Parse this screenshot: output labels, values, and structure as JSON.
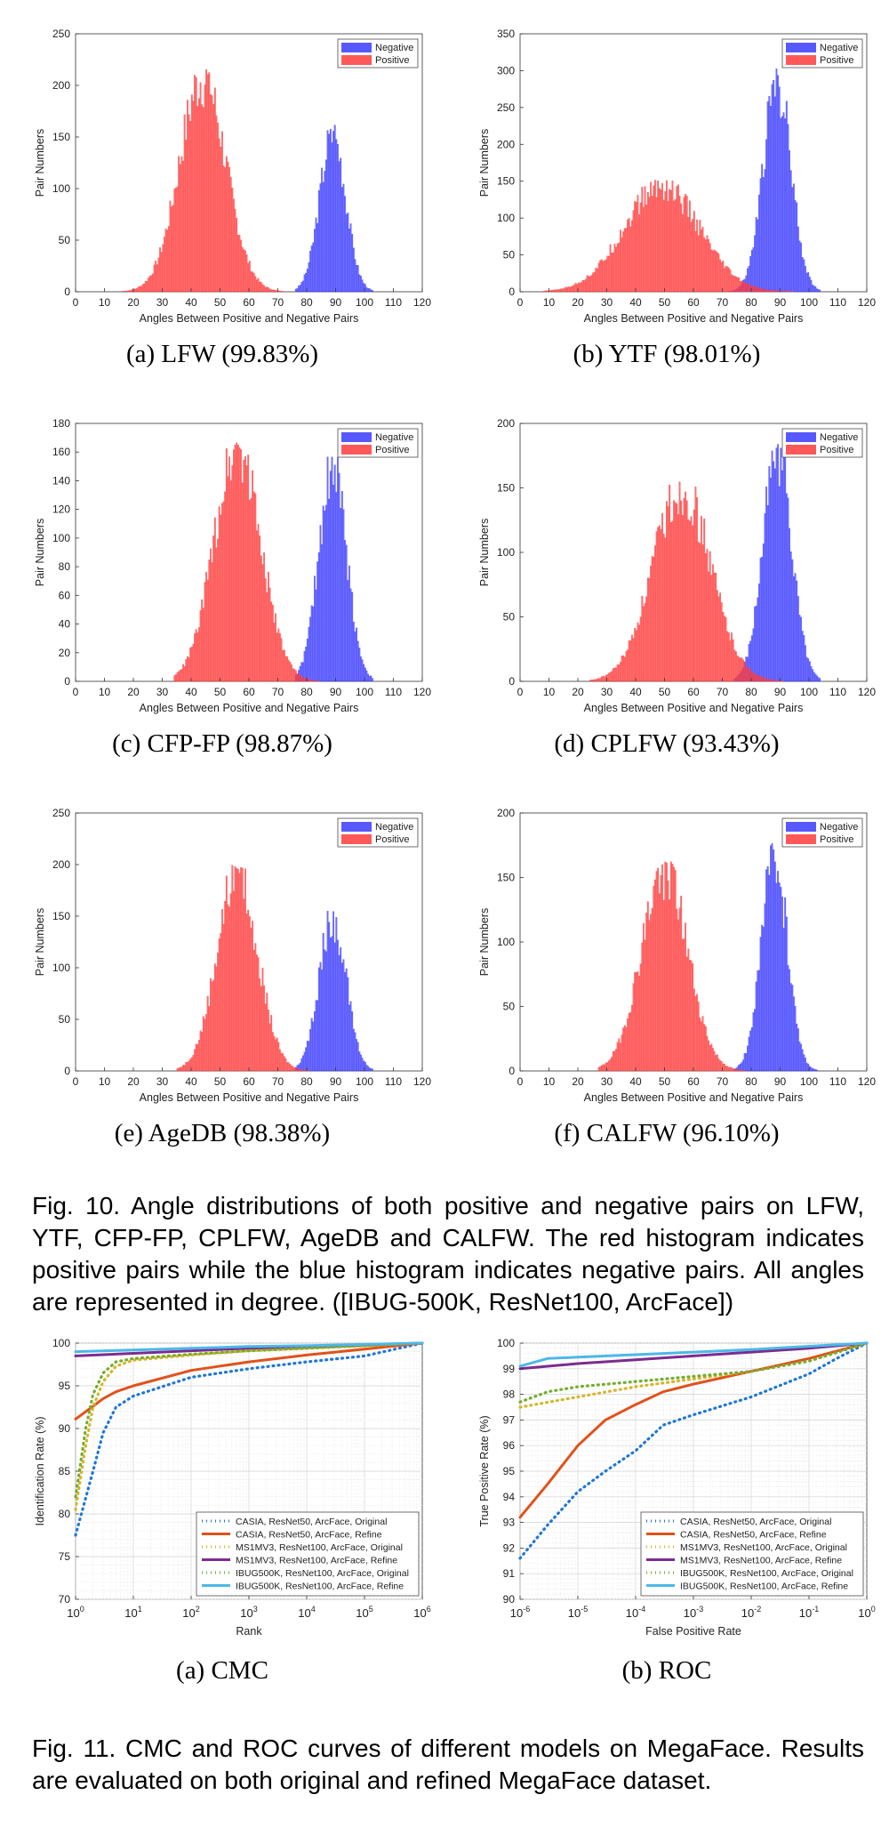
{
  "figure10": {
    "caption": "Fig. 10. Angle distributions of both positive and negative pairs on LFW, YTF, CFP-FP, CPLFW, AgeDB and CALFW. The red histogram indicates positive pairs while the blue histogram indicates negative pairs. All angles are represented in degree. ([IBUG-500K, ResNet100, ArcFace])"
  },
  "figure11": {
    "caption": "Fig. 11. CMC and ROC curves of different models on MegaFace. Results are evaluated on both original and refined MegaFace dataset."
  },
  "colors": {
    "negative": "#3b3bff",
    "positive": "#ff3b3b"
  },
  "chart_data": [
    {
      "id": "lfw",
      "type": "bar",
      "caption": "(a) LFW (99.83%)",
      "xlabel": "Angles Between Positive and Negative Pairs",
      "ylabel": "Pair Numbers",
      "xlim": [
        0,
        120
      ],
      "ylim": [
        0,
        250
      ],
      "xticks": [
        0,
        10,
        20,
        30,
        40,
        50,
        60,
        70,
        80,
        90,
        100,
        110,
        120
      ],
      "yticks": [
        0,
        50,
        100,
        150,
        200,
        250
      ],
      "legend": [
        "Negative",
        "Positive"
      ],
      "legend_position": "top-right",
      "series": [
        {
          "name": "Positive",
          "color": "#ff3b3b",
          "mean": 44,
          "sd": 8,
          "peak": 220,
          "range": [
            16,
            82
          ]
        },
        {
          "name": "Negative",
          "color": "#3b3bff",
          "mean": 89,
          "sd": 4.5,
          "peak": 163,
          "range": [
            76,
            103
          ]
        }
      ]
    },
    {
      "id": "ytf",
      "type": "bar",
      "caption": "(b) YTF (98.01%)",
      "xlabel": "Angles Between Positive and Negative Pairs",
      "ylabel": "Pair Numbers",
      "xlim": [
        0,
        120
      ],
      "ylim": [
        0,
        350
      ],
      "xticks": [
        0,
        10,
        20,
        30,
        40,
        50,
        60,
        70,
        80,
        90,
        100,
        110,
        120
      ],
      "yticks": [
        0,
        50,
        100,
        150,
        200,
        250,
        300,
        350
      ],
      "legend": [
        "Negative",
        "Positive"
      ],
      "legend_position": "top-right",
      "series": [
        {
          "name": "Positive",
          "color": "#ff3b3b",
          "mean": 49,
          "sd": 13,
          "peak": 152,
          "range": [
            8,
            98
          ]
        },
        {
          "name": "Negative",
          "color": "#3b3bff",
          "mean": 89,
          "sd": 4.8,
          "peak": 303,
          "range": [
            72,
            104
          ]
        }
      ]
    },
    {
      "id": "cfpfp",
      "type": "bar",
      "caption": "(c) CFP-FP (98.87%)",
      "xlabel": "Angles Between Positive and Negative Pairs",
      "ylabel": "Pair Numbers",
      "xlim": [
        0,
        120
      ],
      "ylim": [
        0,
        180
      ],
      "xticks": [
        0,
        10,
        20,
        30,
        40,
        50,
        60,
        70,
        80,
        90,
        100,
        110,
        120
      ],
      "yticks": [
        0,
        20,
        40,
        60,
        80,
        100,
        120,
        140,
        160,
        180
      ],
      "legend": [
        "Negative",
        "Positive"
      ],
      "legend_position": "top-right",
      "series": [
        {
          "name": "Positive",
          "color": "#ff3b3b",
          "mean": 56,
          "sd": 8,
          "peak": 175,
          "range": [
            34,
            93
          ]
        },
        {
          "name": "Negative",
          "color": "#3b3bff",
          "mean": 89,
          "sd": 4.8,
          "peak": 160,
          "range": [
            76,
            103
          ]
        }
      ]
    },
    {
      "id": "cplfw",
      "type": "bar",
      "caption": "(d) CPLFW (93.43%)",
      "xlabel": "Angles Between Positive and Negative Pairs",
      "ylabel": "Pair Numbers",
      "xlim": [
        0,
        120
      ],
      "ylim": [
        0,
        200
      ],
      "xticks": [
        0,
        10,
        20,
        30,
        40,
        50,
        60,
        70,
        80,
        90,
        100,
        110,
        120
      ],
      "yticks": [
        0,
        50,
        100,
        150,
        200
      ],
      "legend": [
        "Negative",
        "Positive"
      ],
      "legend_position": "top-right",
      "series": [
        {
          "name": "Positive",
          "color": "#ff3b3b",
          "mean": 56,
          "sd": 10,
          "peak": 158,
          "range": [
            24,
            100
          ]
        },
        {
          "name": "Negative",
          "color": "#3b3bff",
          "mean": 89,
          "sd": 5,
          "peak": 190,
          "range": [
            74,
            104
          ]
        }
      ]
    },
    {
      "id": "agedb",
      "type": "bar",
      "caption": "(e) AgeDB (98.38%)",
      "xlabel": "Angles Between Positive and Negative Pairs",
      "ylabel": "Pair Numbers",
      "xlim": [
        0,
        120
      ],
      "ylim": [
        0,
        250
      ],
      "xticks": [
        0,
        10,
        20,
        30,
        40,
        50,
        60,
        70,
        80,
        90,
        100,
        110,
        120
      ],
      "yticks": [
        0,
        50,
        100,
        150,
        200,
        250
      ],
      "legend": [
        "Negative",
        "Positive"
      ],
      "legend_position": "top-right",
      "series": [
        {
          "name": "Positive",
          "color": "#ff3b3b",
          "mean": 56,
          "sd": 7,
          "peak": 205,
          "range": [
            35,
            92
          ]
        },
        {
          "name": "Negative",
          "color": "#3b3bff",
          "mean": 89,
          "sd": 4.7,
          "peak": 157,
          "range": [
            76,
            103
          ]
        }
      ]
    },
    {
      "id": "calfw",
      "type": "bar",
      "caption": "(f) CALFW (96.10%)",
      "xlabel": "Angles Between Positive and Negative Pairs",
      "ylabel": "Pair Numbers",
      "xlim": [
        0,
        120
      ],
      "ylim": [
        0,
        200
      ],
      "xticks": [
        0,
        10,
        20,
        30,
        40,
        50,
        60,
        70,
        80,
        90,
        100,
        110,
        120
      ],
      "yticks": [
        0,
        50,
        100,
        150,
        200
      ],
      "legend": [
        "Negative",
        "Positive"
      ],
      "legend_position": "top-right",
      "series": [
        {
          "name": "Positive",
          "color": "#ff3b3b",
          "mean": 50,
          "sd": 8,
          "peak": 165,
          "range": [
            27,
            95
          ]
        },
        {
          "name": "Negative",
          "color": "#3b3bff",
          "mean": 88,
          "sd": 4.5,
          "peak": 177,
          "range": [
            74,
            103
          ]
        }
      ]
    },
    {
      "id": "cmc",
      "type": "line",
      "caption": "(a) CMC",
      "xlabel": "Rank",
      "ylabel": "Identification Rate (%)",
      "xscale": "log",
      "xlim": [
        1,
        1000000
      ],
      "ylim": [
        70,
        100
      ],
      "xtick_exponents": [
        "0",
        "1",
        "2",
        "3",
        "4",
        "5",
        "6"
      ],
      "yticks": [
        70,
        75,
        80,
        85,
        90,
        95,
        100
      ],
      "grid": true,
      "legend_position": "bottom-right",
      "series": [
        {
          "name": "CASIA, ResNet50, ArcFace, Original",
          "color": "#1f77d4",
          "style": "dotted",
          "x": [
            1,
            2,
            3,
            5,
            10,
            100,
            1000,
            10000,
            100000,
            1000000
          ],
          "y": [
            77.5,
            85,
            89.5,
            92.5,
            93.8,
            96,
            97,
            97.8,
            98.5,
            100
          ]
        },
        {
          "name": "CASIA, ResNet50, ArcFace, Refine",
          "color": "#e0521b",
          "style": "solid",
          "x": [
            1,
            2,
            3,
            5,
            10,
            100,
            1000,
            10000,
            100000,
            1000000
          ],
          "y": [
            91.1,
            92.6,
            93.5,
            94.3,
            95,
            96.8,
            97.8,
            98.6,
            99.3,
            100
          ]
        },
        {
          "name": "MS1MV3, ResNet100, ArcFace, Original",
          "color": "#d6b52a",
          "style": "dotted",
          "x": [
            1,
            1.5,
            2,
            3,
            5,
            10,
            100,
            1000,
            10000,
            100000,
            1000000
          ],
          "y": [
            80.5,
            88,
            92.5,
            95.5,
            97.3,
            98,
            98.6,
            99.1,
            99.4,
            99.7,
            100
          ]
        },
        {
          "name": "MS1MV3, ResNet100, ArcFace, Refine",
          "color": "#7b2c8f",
          "style": "solid",
          "x": [
            1,
            10,
            100,
            1000,
            10000,
            100000,
            1000000
          ],
          "y": [
            98.5,
            98.8,
            99.1,
            99.4,
            99.6,
            99.8,
            100
          ]
        },
        {
          "name": "IBUG500K, ResNet100, ArcFace, Original",
          "color": "#77ac30",
          "style": "dotted",
          "x": [
            1,
            1.5,
            2,
            3,
            5,
            10,
            100,
            1000,
            10000,
            100000,
            1000000
          ],
          "y": [
            82,
            90,
            94,
            96.5,
            97.8,
            98.2,
            98.7,
            99.1,
            99.4,
            99.7,
            100
          ]
        },
        {
          "name": "IBUG500K, ResNet100, ArcFace, Refine",
          "color": "#4db8e8",
          "style": "solid",
          "x": [
            1,
            10,
            100,
            1000,
            10000,
            100000,
            1000000
          ],
          "y": [
            99,
            99.2,
            99.4,
            99.6,
            99.7,
            99.85,
            100
          ]
        }
      ]
    },
    {
      "id": "roc",
      "type": "line",
      "caption": "(b) ROC",
      "xlabel": "False Positive Rate",
      "ylabel": "True Positive Rate (%)",
      "xscale": "log",
      "xlim": [
        1e-06,
        1
      ],
      "ylim": [
        90,
        100
      ],
      "xtick_exponents": [
        "-6",
        "-5",
        "-4",
        "-3",
        "-2",
        "-1",
        "0"
      ],
      "yticks": [
        90,
        91,
        92,
        93,
        94,
        95,
        96,
        97,
        98,
        99,
        100
      ],
      "grid": true,
      "legend_position": "bottom-right",
      "series": [
        {
          "name": "CASIA, ResNet50, ArcFace, Original",
          "color": "#1f77d4",
          "style": "dotted",
          "x": [
            1e-06,
            3e-06,
            1e-05,
            3e-05,
            0.0001,
            0.0003,
            0.001,
            0.01,
            0.1,
            0.3,
            1
          ],
          "y": [
            91.6,
            92.9,
            94.2,
            95,
            95.8,
            96.8,
            97.2,
            97.9,
            98.8,
            99.4,
            100
          ]
        },
        {
          "name": "CASIA, ResNet50, ArcFace, Refine",
          "color": "#e0521b",
          "style": "solid",
          "x": [
            1e-06,
            3e-06,
            1e-05,
            3e-05,
            0.0001,
            0.0003,
            0.001,
            0.01,
            0.1,
            1
          ],
          "y": [
            93.2,
            94.5,
            96,
            97,
            97.6,
            98.1,
            98.4,
            98.9,
            99.4,
            100
          ]
        },
        {
          "name": "MS1MV3, ResNet100, ArcFace, Original",
          "color": "#d6b52a",
          "style": "dotted",
          "x": [
            1e-06,
            1e-05,
            0.0001,
            0.001,
            0.01,
            0.1,
            1
          ],
          "y": [
            97.5,
            97.9,
            98.3,
            98.6,
            98.9,
            99.3,
            100
          ]
        },
        {
          "name": "MS1MV3, ResNet100, ArcFace, Refine",
          "color": "#7b2c8f",
          "style": "solid",
          "x": [
            1e-06,
            1e-05,
            0.0001,
            0.001,
            0.01,
            0.1,
            1
          ],
          "y": [
            99,
            99.2,
            99.35,
            99.5,
            99.65,
            99.8,
            100
          ]
        },
        {
          "name": "IBUG500K, ResNet100, ArcFace, Original",
          "color": "#77ac30",
          "style": "dotted",
          "x": [
            1e-06,
            3e-06,
            1e-05,
            0.0001,
            0.001,
            0.01,
            0.1,
            1
          ],
          "y": [
            97.7,
            98.1,
            98.3,
            98.5,
            98.7,
            98.9,
            99.3,
            100
          ]
        },
        {
          "name": "IBUG500K, ResNet100, ArcFace, Refine",
          "color": "#4db8e8",
          "style": "solid",
          "x": [
            1e-06,
            3e-06,
            1e-05,
            0.0001,
            0.001,
            0.01,
            0.1,
            1
          ],
          "y": [
            99.1,
            99.4,
            99.45,
            99.55,
            99.65,
            99.75,
            99.88,
            100
          ]
        }
      ]
    }
  ]
}
